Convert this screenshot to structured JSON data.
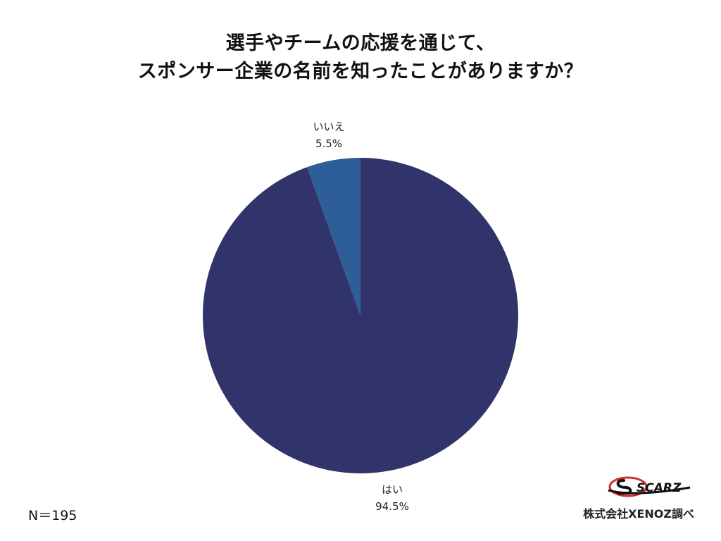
{
  "title": {
    "line1": "選手やチームの応援を通じて、",
    "line2": "スポンサー企業の名前を知ったことがありますか？"
  },
  "chart_data": {
    "type": "pie",
    "title": "選手やチームの応援を通じて、スポンサー企業の名前を知ったことがありますか？",
    "slices": [
      {
        "label": "はい",
        "value": 94.5,
        "value_label": "94.5%",
        "color": "#31346b"
      },
      {
        "label": "いいえ",
        "value": 5.5,
        "value_label": "5.5%",
        "color": "#2e5e98"
      }
    ],
    "start": "12 o'clock, clockwise",
    "legend": "none (labels outside slices)"
  },
  "footnote": {
    "n": "N＝195"
  },
  "logo": {
    "text": "SCARZ",
    "colors": {
      "accent": "#d42a2a",
      "ink": "#111111"
    }
  },
  "source": {
    "text": "株式会社XENOZ調べ"
  }
}
